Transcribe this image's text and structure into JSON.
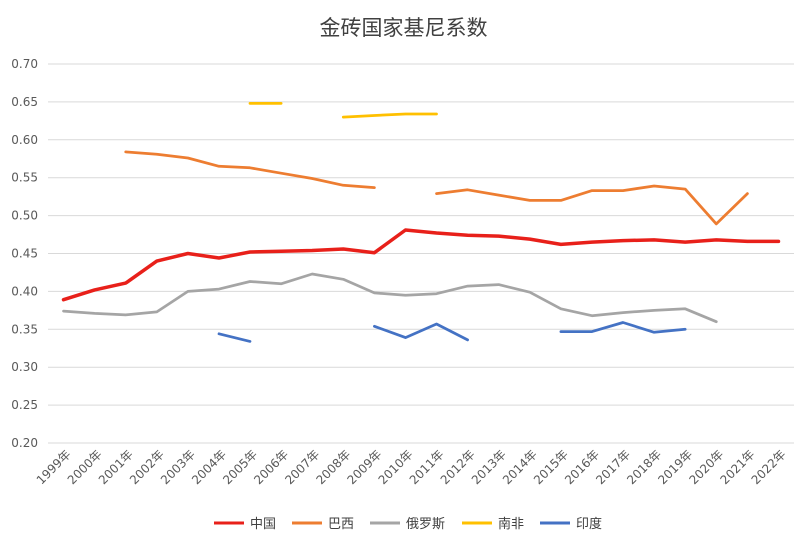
{
  "chart_data": {
    "type": "line",
    "title": "金砖国家基尼系数",
    "xlabel": "",
    "ylabel": "",
    "x": [
      "1999年",
      "2000年",
      "2001年",
      "2002年",
      "2003年",
      "2004年",
      "2005年",
      "2006年",
      "2007年",
      "2008年",
      "2009年",
      "2010年",
      "2011年",
      "2012年",
      "2013年",
      "2014年",
      "2015年",
      "2016年",
      "2017年",
      "2018年",
      "2019年",
      "2020年",
      "2021年",
      "2022年"
    ],
    "ylim": [
      0.2,
      0.7
    ],
    "yticks": [
      "0.20",
      "0.25",
      "0.30",
      "0.35",
      "0.40",
      "0.45",
      "0.50",
      "0.55",
      "0.60",
      "0.65",
      "0.70"
    ],
    "grid": true,
    "legend_position": "bottom",
    "series": [
      {
        "name": "中国",
        "color": "#E8201A",
        "width": 3.5,
        "values": [
          0.389,
          0.402,
          0.411,
          0.44,
          0.45,
          0.444,
          0.452,
          0.453,
          0.454,
          0.456,
          0.451,
          0.481,
          0.477,
          0.474,
          0.473,
          0.469,
          0.462,
          0.465,
          0.467,
          0.468,
          0.465,
          0.468,
          0.466,
          0.466
        ]
      },
      {
        "name": "巴西",
        "color": "#ED7D31",
        "width": 2.75,
        "values": [
          null,
          null,
          0.584,
          0.581,
          0.576,
          0.565,
          0.563,
          0.556,
          0.549,
          0.54,
          0.537,
          null,
          0.529,
          0.534,
          0.527,
          0.52,
          0.52,
          0.533,
          0.533,
          0.539,
          0.535,
          0.489,
          0.529,
          null
        ]
      },
      {
        "name": "俄罗斯",
        "color": "#A5A5A5",
        "width": 2.75,
        "values": [
          0.374,
          0.371,
          0.369,
          0.373,
          0.4,
          0.403,
          0.413,
          0.41,
          0.423,
          0.416,
          0.398,
          0.395,
          0.397,
          0.407,
          0.409,
          0.399,
          0.377,
          0.368,
          0.372,
          0.375,
          0.377,
          0.36,
          null,
          null
        ]
      },
      {
        "name": "南非",
        "color": "#FFC000",
        "width": 2.75,
        "values": [
          null,
          null,
          null,
          null,
          null,
          null,
          0.648,
          0.648,
          null,
          0.63,
          0.632,
          0.634,
          0.634,
          null,
          null,
          null,
          null,
          null,
          null,
          null,
          null,
          null,
          null,
          null
        ]
      },
      {
        "name": "印度",
        "color": "#4472C4",
        "width": 2.75,
        "values": [
          null,
          null,
          null,
          null,
          null,
          0.344,
          0.334,
          null,
          null,
          null,
          0.354,
          0.339,
          0.357,
          0.336,
          null,
          null,
          0.347,
          0.347,
          0.359,
          0.346,
          0.35,
          null,
          null,
          null
        ]
      }
    ]
  }
}
